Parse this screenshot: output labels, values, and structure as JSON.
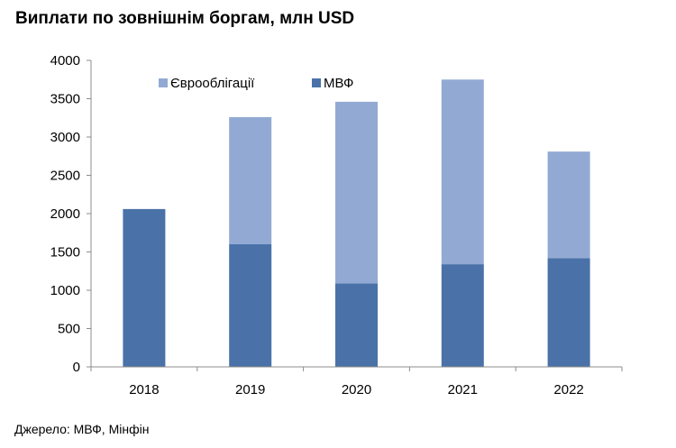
{
  "chart_data": {
    "type": "bar",
    "stacked": true,
    "title": "Виплати по зовнішнім боргам, млн USD",
    "categories": [
      "2018",
      "2019",
      "2020",
      "2021",
      "2022"
    ],
    "series": [
      {
        "name": "МВФ",
        "values": [
          2060,
          1600,
          1090,
          1340,
          1420
        ],
        "color": "#4a72a8"
      },
      {
        "name": "Єврооблігації",
        "values": [
          0,
          1660,
          2370,
          2410,
          1390
        ],
        "color": "#92aad3"
      }
    ],
    "ylim": [
      0,
      4000
    ],
    "yticks": [
      "0",
      "500",
      "1000",
      "1500",
      "2000",
      "2500",
      "3000",
      "3500",
      "4000"
    ],
    "grid": false,
    "legend": [
      "Єврооблігації",
      "МВФ"
    ],
    "legend_position": "top"
  },
  "source": "Джерело: МВФ, Мінфін"
}
